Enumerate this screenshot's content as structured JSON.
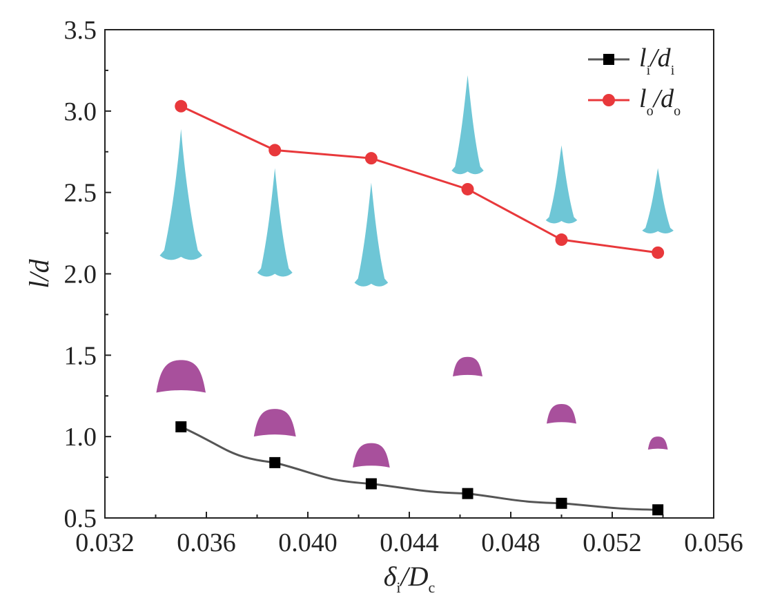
{
  "chart_data": {
    "type": "line",
    "xlabel": {
      "base": "δ",
      "sub": "i",
      "rest": "/D",
      "sub2": "c"
    },
    "ylabel": "l/d",
    "xlim": [
      0.032,
      0.056
    ],
    "ylim": [
      0.5,
      3.5
    ],
    "xticks": [
      "0.032",
      "0.036",
      "0.040",
      "0.044",
      "0.048",
      "0.052",
      "0.056"
    ],
    "yticks": [
      "0.5",
      "1.0",
      "1.5",
      "2.0",
      "2.5",
      "3.0",
      "3.5"
    ],
    "x": [
      0.035,
      0.0387,
      0.0425,
      0.0463,
      0.05,
      0.0538
    ],
    "grid": false,
    "legend_position": "top-right",
    "series": [
      {
        "name_parts": {
          "a": "l",
          "asub": "i",
          "b": "/d",
          "bsub": "i"
        },
        "marker": "square",
        "color": "#000000",
        "line_color": "#555555",
        "values": [
          1.06,
          0.84,
          0.71,
          0.65,
          0.59,
          0.55
        ]
      },
      {
        "name_parts": {
          "a": "l",
          "asub": "o",
          "b": "/d",
          "bsub": "o"
        },
        "marker": "circle",
        "color": "#e8383b",
        "line_color": "#e8383b",
        "values": [
          3.03,
          2.76,
          2.71,
          2.52,
          2.21,
          2.13
        ]
      }
    ],
    "annotations": {
      "cyan_shapes": {
        "color": "#6ec6d6",
        "tip": [
          2.89,
          2.65,
          2.56,
          3.22,
          2.79,
          2.65
        ],
        "base": [
          2.08,
          1.98,
          1.92,
          2.61,
          2.31,
          2.25
        ]
      },
      "magenta_shapes": {
        "color": "#a8509c",
        "top": [
          1.47,
          1.17,
          0.96,
          1.49,
          1.2,
          1.0
        ],
        "base": [
          1.27,
          1.0,
          0.81,
          1.37,
          1.08,
          0.92
        ]
      }
    }
  }
}
